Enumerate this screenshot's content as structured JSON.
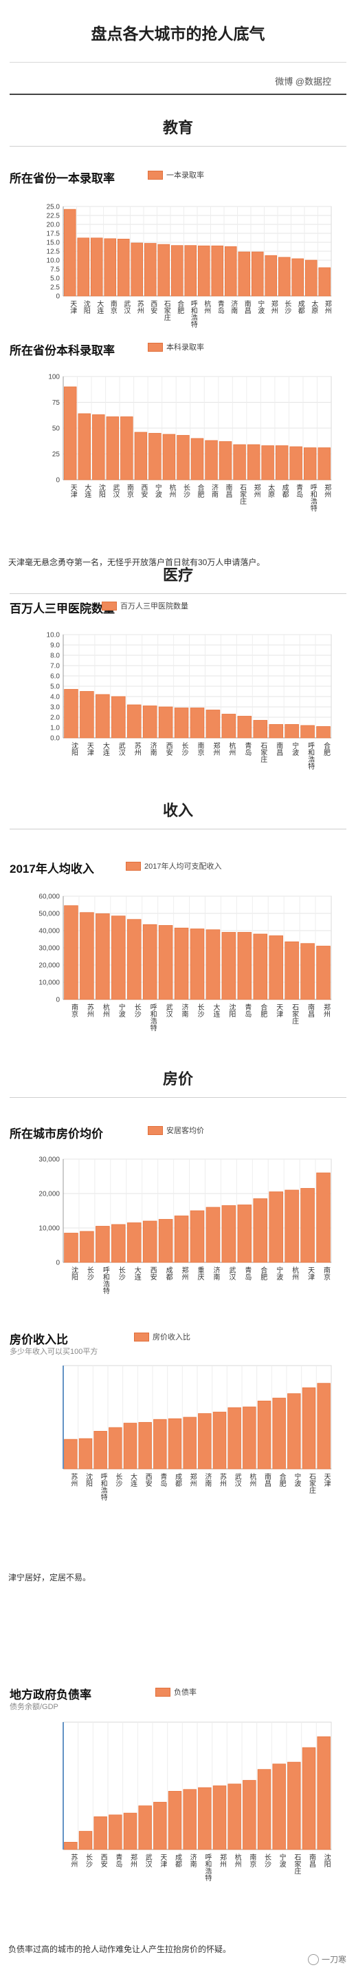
{
  "page": {
    "title": "盘点各大城市的抢人底气",
    "source": "微博 @数据控",
    "watermark": "一刀寒"
  },
  "sections": {
    "education": "教育",
    "medical": "医疗",
    "income": "收入",
    "housing": "房价"
  },
  "notes": {
    "education": "天津毫无悬念勇夺第一名，无怪乎开放落户首日就有30万人申请落户。",
    "housing_ratio": "津宁居好，定居不易。",
    "debt": "负债率过高的城市的抢人动作难免让人产生拉抬房价的怀疑。"
  },
  "chart_data": [
    {
      "id": "yiben",
      "type": "bar",
      "title": "所在省份一本录取率",
      "legend": "一本录取率",
      "categories": [
        "天津",
        "沈阳",
        "大连",
        "南京",
        "武汉",
        "苏州",
        "西安",
        "石家庄",
        "合肥",
        "呼和浩特",
        "杭州",
        "青岛",
        "济南",
        "南昌",
        "宁波",
        "郑州",
        "长沙",
        "成都",
        "太原",
        "郑州"
      ],
      "values": [
        24.2,
        16.2,
        16.2,
        16.0,
        15.9,
        14.8,
        14.7,
        14.4,
        14.1,
        14.1,
        14.0,
        14.0,
        13.8,
        12.3,
        12.3,
        11.3,
        10.8,
        10.4,
        10.0,
        7.9
      ],
      "ylim": [
        0,
        25
      ],
      "yticks": [
        0,
        2.5,
        5,
        7.5,
        10,
        12.5,
        15,
        17.5,
        20,
        22.5,
        25
      ],
      "ytick_labels": [
        "0",
        "2.5",
        "5.0",
        "7.5",
        "10.0",
        "12.5",
        "15.0",
        "17.5",
        "20.0",
        "22.5",
        "25.0"
      ]
    },
    {
      "id": "benke",
      "type": "bar",
      "title": "所在省份本科录取率",
      "legend": "本科录取率",
      "categories": [
        "天津",
        "大连",
        "沈阳",
        "武汉",
        "南京",
        "西安",
        "宁波",
        "杭州",
        "长沙",
        "合肥",
        "济南",
        "南昌",
        "石家庄",
        "郑州",
        "太原",
        "成都",
        "青岛",
        "呼和浩特",
        "郑州"
      ],
      "values": [
        90,
        64,
        63,
        61,
        61,
        46,
        45,
        44,
        43,
        40,
        38,
        37,
        34,
        34,
        33,
        33,
        32,
        31,
        31
      ],
      "ylim": [
        0,
        100
      ],
      "yticks": [
        0,
        25,
        50,
        75,
        100
      ],
      "ytick_labels": [
        "0",
        "25",
        "50",
        "75",
        "100"
      ]
    },
    {
      "id": "hospital",
      "type": "bar",
      "title": "百万人三甲医院数量",
      "legend": "百万人三甲医院数量",
      "categories": [
        "沈阳",
        "天津",
        "大连",
        "武汉",
        "苏州",
        "济南",
        "西安",
        "长沙",
        "南京",
        "郑州",
        "杭州",
        "青岛",
        "石家庄",
        "南昌",
        "宁波",
        "呼和浩特",
        "合肥"
      ],
      "values": [
        4.7,
        4.5,
        4.2,
        4.0,
        3.2,
        3.1,
        3.0,
        2.9,
        2.9,
        2.7,
        2.3,
        2.1,
        1.7,
        1.3,
        1.3,
        1.2,
        1.1
      ],
      "ylim": [
        0,
        10
      ],
      "yticks": [
        0,
        1,
        2,
        3,
        4,
        5,
        6,
        7,
        8,
        9,
        10
      ],
      "ytick_labels": [
        "0.0",
        "1.0",
        "2.0",
        "3.0",
        "4.0",
        "5.0",
        "6.0",
        "7.0",
        "8.0",
        "9.0",
        "10.0"
      ]
    },
    {
      "id": "income",
      "type": "bar",
      "title": "2017年人均收入",
      "legend": "2017年人均可支配收入",
      "categories": [
        "南京",
        "苏州",
        "杭州",
        "宁波",
        "长沙",
        "呼和浩特",
        "武汉",
        "济南",
        "长沙",
        "大连",
        "沈阳",
        "青岛",
        "合肥",
        "天津",
        "石家庄",
        "南昌",
        "郑州"
      ],
      "values": [
        54500,
        50500,
        49800,
        48500,
        46500,
        43500,
        43000,
        41500,
        41000,
        40500,
        39000,
        39000,
        38000,
        37000,
        33500,
        32500,
        31000
      ],
      "ylim": [
        0,
        60000
      ],
      "yticks": [
        0,
        10000,
        20000,
        30000,
        40000,
        50000,
        60000
      ],
      "ytick_labels": [
        "0",
        "10,000",
        "20,000",
        "30,000",
        "40,000",
        "50,000",
        "60,000"
      ]
    },
    {
      "id": "houseprice",
      "type": "bar",
      "title": "所在城市房价均价",
      "legend": "安居客均价",
      "categories": [
        "沈阳",
        "长沙",
        "呼和浩特",
        "长沙",
        "大连",
        "西安",
        "成都",
        "郑州",
        "重庆",
        "济南",
        "武汉",
        "青岛",
        "合肥",
        "宁波",
        "杭州",
        "天津",
        "南京"
      ],
      "values": [
        8500,
        9000,
        10500,
        11000,
        11500,
        12000,
        12500,
        13500,
        15000,
        16000,
        16500,
        16700,
        18500,
        20500,
        21000,
        21500,
        26000
      ],
      "ylim": [
        0,
        30000
      ],
      "yticks": [
        0,
        10000,
        20000,
        30000
      ],
      "ytick_labels": [
        "0",
        "10,000",
        "20,000",
        "30,000"
      ]
    },
    {
      "id": "houseratio",
      "type": "bar",
      "title": "房价收入比",
      "subtitle": "多少年收入可以买100平方",
      "legend": "房价收入比",
      "categories": [
        "苏州",
        "沈阳",
        "呼和浩特",
        "长沙",
        "大连",
        "西安",
        "青岛",
        "成都",
        "郑州",
        "济南",
        "苏州",
        "武汉",
        "杭州",
        "南昌",
        "合肥",
        "宁波",
        "石家庄",
        "天津"
      ],
      "values": [
        20,
        20.5,
        25.5,
        28,
        31,
        31.5,
        33.5,
        34,
        35,
        37.5,
        38.5,
        41.5,
        42,
        46,
        48,
        51,
        55,
        58
      ],
      "ylim": [
        0,
        70
      ],
      "yticks": [],
      "ytick_labels": []
    },
    {
      "id": "debt",
      "type": "bar",
      "title": "地方政府负债率",
      "subtitle": "债务余额/GDP",
      "legend": "负债率",
      "categories": [
        "苏州",
        "长沙",
        "西安",
        "青岛",
        "郑州",
        "武汉",
        "天津",
        "成都",
        "济南",
        "呼和浩特",
        "郑州",
        "杭州",
        "南京",
        "长沙",
        "宁波",
        "石家庄",
        "南昌",
        "沈阳"
      ],
      "values": [
        2,
        5,
        9,
        9.5,
        10,
        12,
        13,
        16,
        16.5,
        17,
        17.5,
        18,
        19,
        22,
        23.5,
        24,
        28,
        31
      ],
      "ylim": [
        0,
        35
      ],
      "yticks": [],
      "ytick_labels": []
    }
  ]
}
